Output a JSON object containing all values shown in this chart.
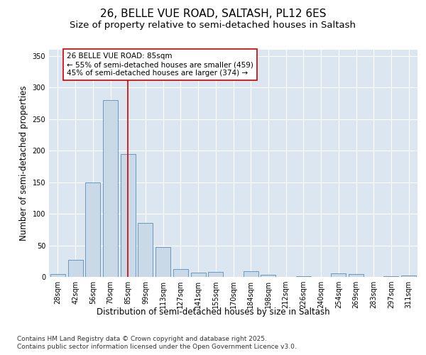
{
  "title": "26, BELLE VUE ROAD, SALTASH, PL12 6ES",
  "subtitle": "Size of property relative to semi-detached houses in Saltash",
  "xlabel": "Distribution of semi-detached houses by size in Saltash",
  "ylabel": "Number of semi-detached properties",
  "annotation_title": "26 BELLE VUE ROAD: 85sqm",
  "annotation_line1": "← 55% of semi-detached houses are smaller (459)",
  "annotation_line2": "45% of semi-detached houses are larger (374) →",
  "footer_line1": "Contains HM Land Registry data © Crown copyright and database right 2025.",
  "footer_line2": "Contains public sector information licensed under the Open Government Licence v3.0.",
  "categories": [
    "28sqm",
    "42sqm",
    "56sqm",
    "70sqm",
    "85sqm",
    "99sqm",
    "113sqm",
    "127sqm",
    "141sqm",
    "155sqm",
    "170sqm",
    "184sqm",
    "198sqm",
    "212sqm",
    "226sqm",
    "240sqm",
    "254sqm",
    "269sqm",
    "283sqm",
    "297sqm",
    "311sqm"
  ],
  "values": [
    5,
    27,
    150,
    280,
    195,
    85,
    47,
    12,
    7,
    8,
    0,
    9,
    3,
    0,
    1,
    0,
    6,
    5,
    0,
    1,
    2
  ],
  "bar_color": "#c9d9e8",
  "bar_edge_color": "#5b8db8",
  "highlight_bar_index": 4,
  "vline_color": "#cc0000",
  "ylim": [
    0,
    360
  ],
  "yticks": [
    0,
    50,
    100,
    150,
    200,
    250,
    300,
    350
  ],
  "plot_bg_color": "#dce6f0",
  "title_fontsize": 11,
  "subtitle_fontsize": 9.5,
  "axis_label_fontsize": 8.5,
  "tick_fontsize": 7,
  "annotation_fontsize": 7.5,
  "footer_fontsize": 6.5
}
